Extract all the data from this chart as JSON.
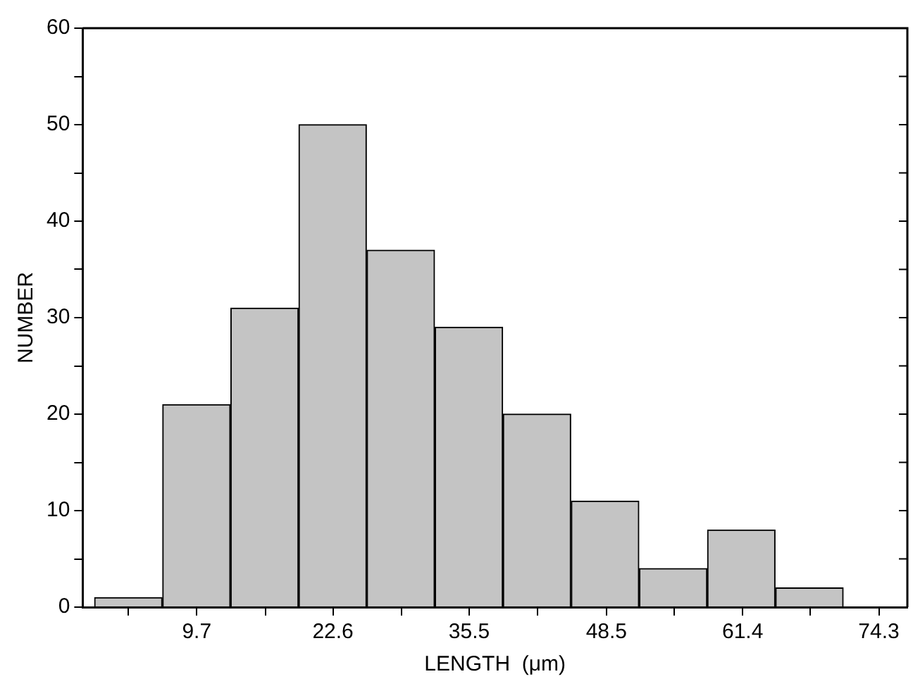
{
  "chart_data": {
    "type": "histogram",
    "xlabel": "LENGTH  (μm)",
    "ylabel": "NUMBER",
    "bins": [
      0,
      6.45,
      12.9,
      19.35,
      25.8,
      32.25,
      38.7,
      45.15,
      51.6,
      58.05,
      64.5,
      70.95
    ],
    "values": [
      1,
      21,
      31,
      50,
      37,
      29,
      20,
      11,
      4,
      8,
      2
    ],
    "color": "#c4c4c4",
    "xlim": [
      -1.1,
      77
    ],
    "xticks": [
      {
        "value": 3.2,
        "label": null
      },
      9.7,
      {
        "value": 16.2,
        "label": null
      },
      22.6,
      {
        "value": 29.1,
        "label": null
      },
      35.5,
      {
        "value": 42,
        "label": null
      },
      48.5,
      {
        "value": 54.9,
        "label": null
      },
      61.4,
      {
        "value": 67.8,
        "label": null
      },
      74.3
    ],
    "ylim": [
      0,
      60
    ],
    "yticks": [
      0,
      {
        "value": 5,
        "label": null
      },
      10,
      {
        "value": 15,
        "label": null
      },
      20,
      {
        "value": 25,
        "label": null
      },
      30,
      {
        "value": 35,
        "label": null
      },
      40,
      {
        "value": 45,
        "label": null
      },
      50,
      {
        "value": 55,
        "label": null
      },
      60
    ],
    "grid": false,
    "legend": false
  }
}
